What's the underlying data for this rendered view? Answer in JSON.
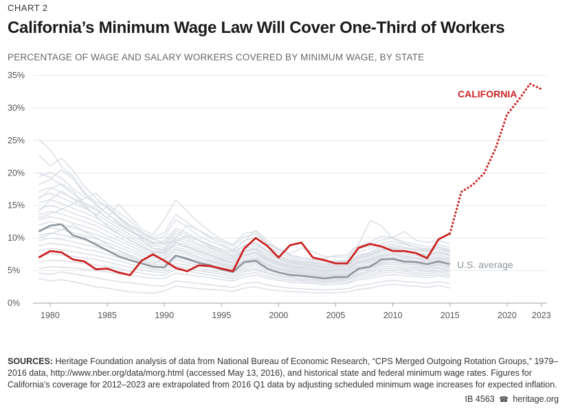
{
  "header": {
    "kicker": "CHART 2",
    "title": "California’s Minimum Wage Law Will Cover One-Third of Workers",
    "subtitle": "PERCENTAGE OF WAGE AND SALARY WORKERS COVERED BY MINIMUM WAGE, BY STATE"
  },
  "chart_data": {
    "type": "line",
    "xlabel": "",
    "ylabel": "",
    "xlim": [
      1978.5,
      2023.5
    ],
    "ylim": [
      0,
      35
    ],
    "x_ticks": [
      1980,
      1985,
      1990,
      1995,
      2000,
      2005,
      2010,
      2015,
      2020,
      2023
    ],
    "y_ticks": [
      0,
      5,
      10,
      15,
      20,
      25,
      30,
      35
    ],
    "y_tick_labels": [
      "0%",
      "5%",
      "10%",
      "15%",
      "20%",
      "25%",
      "30%",
      "35%"
    ],
    "grid": true,
    "colors": {
      "states": "#d8dde3",
      "us": "#8f979e",
      "california": "#cc2222"
    },
    "series": [
      {
        "name": "CALIFORNIA",
        "color": "#cc2222",
        "x": [
          1979,
          1980,
          1981,
          1982,
          1983,
          1984,
          1985,
          1986,
          1987,
          1988,
          1989,
          1990,
          1991,
          1992,
          1993,
          1994,
          1995,
          1996,
          1997,
          1998,
          1999,
          2000,
          2001,
          2002,
          2003,
          2004,
          2005,
          2006,
          2007,
          2008,
          2009,
          2010,
          2011,
          2012,
          2013,
          2014,
          2015
        ],
        "values": [
          7.0,
          8.0,
          7.8,
          6.7,
          6.4,
          5.2,
          5.3,
          4.7,
          4.3,
          6.5,
          7.5,
          6.5,
          5.4,
          4.9,
          5.8,
          5.7,
          5.3,
          4.9,
          8.4,
          10.0,
          8.8,
          7.0,
          8.9,
          9.3,
          7.0,
          6.6,
          6.1,
          6.1,
          8.5,
          9.1,
          8.7,
          8.0,
          8.0,
          7.7,
          6.9,
          9.8,
          10.7
        ]
      },
      {
        "name": "CALIFORNIA projection",
        "color": "#cc2222",
        "dotted": true,
        "x": [
          2015,
          2016,
          2017,
          2018,
          2019,
          2020,
          2021,
          2022,
          2023
        ],
        "values": [
          10.7,
          17.1,
          18.2,
          20.0,
          23.8,
          29.0,
          31.2,
          33.7,
          32.9
        ]
      },
      {
        "name": "U.S. average",
        "color": "#8f979e",
        "x": [
          1979,
          1980,
          1981,
          1982,
          1983,
          1984,
          1985,
          1986,
          1987,
          1988,
          1989,
          1990,
          1991,
          1992,
          1993,
          1994,
          1995,
          1996,
          1997,
          1998,
          1999,
          2000,
          2001,
          2002,
          2003,
          2004,
          2005,
          2006,
          2007,
          2008,
          2009,
          2010,
          2011,
          2012,
          2013,
          2014,
          2015
        ],
        "values": [
          11.0,
          11.9,
          12.1,
          10.4,
          9.9,
          9.0,
          8.1,
          7.2,
          6.6,
          6.1,
          5.6,
          5.5,
          7.3,
          6.8,
          6.2,
          5.8,
          5.2,
          4.8,
          6.3,
          6.5,
          5.3,
          4.7,
          4.3,
          4.2,
          4.0,
          3.8,
          4.0,
          4.0,
          5.3,
          5.6,
          6.7,
          6.8,
          6.4,
          6.3,
          6.0,
          6.4,
          6.0
        ]
      }
    ],
    "background_series_note": "state lines",
    "state_series": [
      [
        25.2,
        23.6,
        21.0,
        19.5,
        17.1,
        15.0,
        13.8,
        12.2,
        11.0,
        10.1,
        9.2,
        9.6,
        11.5,
        10.8,
        9.7,
        9.0,
        8.3,
        7.8,
        8.8,
        9.2,
        8.0,
        7.1,
        6.5,
        6.3,
        6.1,
        5.8,
        6.0,
        6.1,
        7.2,
        7.6,
        8.6,
        8.8,
        8.4,
        8.1,
        7.9,
        8.2,
        7.8
      ],
      [
        22.8,
        21.1,
        22.3,
        20.4,
        17.9,
        16.2,
        14.6,
        13.1,
        11.8,
        10.6,
        9.8,
        10.2,
        12.8,
        11.7,
        10.3,
        9.5,
        8.8,
        8.0,
        9.6,
        10.1,
        8.7,
        7.7,
        7.0,
        6.7,
        6.4,
        6.1,
        6.3,
        6.4,
        7.9,
        8.3,
        9.2,
        9.5,
        9.0,
        8.6,
        8.3,
        8.7,
        8.2
      ],
      [
        19.4,
        20.1,
        19.2,
        17.6,
        16.4,
        15.3,
        13.7,
        12.5,
        11.2,
        10.3,
        9.4,
        9.2,
        11.1,
        10.4,
        9.6,
        8.8,
        8.1,
        7.4,
        8.9,
        9.3,
        8.1,
        7.3,
        6.7,
        6.4,
        6.2,
        5.9,
        6.1,
        6.2,
        7.4,
        7.8,
        8.9,
        9.1,
        8.6,
        8.3,
        8.0,
        8.5,
        8.0
      ],
      [
        18.2,
        19.0,
        20.5,
        19.1,
        16.8,
        15.6,
        14.9,
        13.3,
        12.0,
        10.9,
        10.1,
        10.8,
        13.6,
        12.4,
        11.2,
        10.3,
        9.5,
        8.7,
        10.2,
        10.6,
        9.1,
        8.1,
        7.4,
        7.0,
        6.7,
        6.4,
        6.5,
        6.6,
        8.3,
        8.8,
        9.7,
        10.0,
        9.4,
        9.0,
        8.6,
        9.0,
        8.6
      ],
      [
        17.1,
        17.8,
        17.0,
        16.1,
        15.2,
        14.3,
        13.1,
        12.0,
        11.0,
        10.0,
        9.1,
        9.0,
        10.7,
        10.0,
        9.1,
        8.4,
        7.8,
        7.1,
        8.4,
        8.9,
        7.8,
        7.0,
        6.4,
        6.1,
        5.9,
        5.6,
        5.8,
        5.9,
        7.0,
        7.4,
        8.3,
        8.6,
        8.1,
        7.8,
        7.5,
        7.9,
        7.5
      ],
      [
        16.3,
        16.9,
        16.2,
        15.4,
        14.6,
        13.7,
        12.6,
        11.6,
        10.5,
        9.6,
        8.8,
        8.6,
        10.2,
        9.6,
        8.8,
        8.1,
        7.5,
        6.8,
        8.1,
        8.5,
        7.4,
        6.7,
        6.1,
        5.9,
        5.7,
        5.4,
        5.6,
        5.7,
        6.8,
        7.2,
        8.0,
        8.3,
        7.9,
        7.6,
        7.3,
        7.7,
        7.3
      ],
      [
        15.4,
        15.9,
        15.3,
        14.6,
        13.9,
        13.1,
        12.1,
        11.1,
        10.1,
        9.2,
        8.4,
        8.3,
        9.8,
        9.2,
        8.4,
        7.8,
        7.2,
        6.6,
        7.8,
        8.2,
        7.1,
        6.4,
        5.9,
        5.7,
        5.5,
        5.2,
        5.4,
        5.5,
        6.5,
        6.9,
        7.7,
        8.0,
        7.6,
        7.3,
        7.0,
        7.4,
        7.0
      ],
      [
        14.5,
        15.0,
        14.5,
        13.8,
        13.2,
        12.5,
        11.6,
        10.6,
        9.7,
        8.8,
        8.0,
        7.9,
        9.4,
        8.8,
        8.1,
        7.5,
        6.9,
        6.3,
        7.5,
        7.9,
        6.9,
        6.2,
        5.7,
        5.5,
        5.3,
        5.0,
        5.2,
        5.3,
        6.3,
        6.7,
        7.4,
        7.7,
        7.3,
        7.0,
        6.8,
        7.1,
        6.8
      ],
      [
        13.6,
        14.1,
        13.7,
        13.1,
        12.5,
        11.9,
        11.0,
        10.1,
        9.2,
        8.4,
        7.7,
        7.6,
        9.0,
        8.5,
        7.8,
        7.2,
        6.6,
        6.1,
        7.2,
        7.6,
        6.6,
        6.0,
        5.5,
        5.3,
        5.1,
        4.8,
        5.0,
        5.1,
        6.1,
        6.4,
        7.1,
        7.4,
        7.0,
        6.8,
        6.5,
        6.8,
        6.5
      ],
      [
        12.8,
        13.3,
        12.9,
        12.3,
        11.8,
        11.2,
        10.4,
        9.6,
        8.8,
        8.0,
        7.3,
        7.3,
        8.6,
        8.1,
        7.5,
        6.9,
        6.4,
        5.8,
        6.9,
        7.3,
        6.4,
        5.8,
        5.3,
        5.1,
        4.9,
        4.7,
        4.8,
        4.9,
        5.8,
        6.2,
        6.9,
        7.1,
        6.8,
        6.5,
        6.3,
        6.6,
        6.3
      ],
      [
        12.0,
        12.5,
        12.1,
        11.6,
        11.1,
        10.6,
        9.9,
        9.1,
        8.3,
        7.6,
        7.0,
        6.9,
        8.2,
        7.7,
        7.1,
        6.6,
        6.1,
        5.6,
        6.6,
        7.0,
        6.1,
        5.5,
        5.1,
        4.9,
        4.7,
        4.5,
        4.6,
        4.7,
        5.6,
        5.9,
        6.6,
        6.9,
        6.5,
        6.3,
        6.0,
        6.3,
        6.0
      ],
      [
        11.2,
        11.6,
        11.3,
        10.8,
        10.4,
        9.9,
        9.3,
        8.6,
        7.9,
        7.2,
        6.6,
        6.6,
        7.8,
        7.4,
        6.8,
        6.3,
        5.8,
        5.3,
        6.3,
        6.7,
        5.8,
        5.3,
        4.9,
        4.7,
        4.5,
        4.3,
        4.4,
        4.5,
        5.3,
        5.7,
        6.3,
        6.6,
        6.2,
        6.0,
        5.8,
        6.1,
        5.8
      ],
      [
        10.4,
        10.8,
        10.5,
        10.1,
        9.7,
        9.3,
        8.7,
        8.1,
        7.4,
        6.8,
        6.3,
        6.2,
        7.4,
        7.0,
        6.5,
        6.0,
        5.5,
        5.1,
        6.0,
        6.4,
        5.6,
        5.1,
        4.7,
        4.5,
        4.3,
        4.1,
        4.2,
        4.3,
        5.1,
        5.4,
        6.0,
        6.3,
        6.0,
        5.8,
        5.5,
        5.8,
        5.5
      ],
      [
        9.6,
        10.0,
        9.8,
        9.4,
        9.0,
        8.6,
        8.1,
        7.6,
        7.0,
        6.4,
        5.9,
        5.9,
        7.0,
        6.6,
        6.1,
        5.7,
        5.2,
        4.8,
        5.7,
        6.1,
        5.3,
        4.8,
        4.5,
        4.3,
        4.1,
        3.9,
        4.0,
        4.1,
        4.9,
        5.2,
        5.8,
        6.0,
        5.7,
        5.5,
        5.3,
        5.5,
        5.3
      ],
      [
        8.8,
        9.2,
        9.0,
        8.7,
        8.3,
        8.0,
        7.5,
        7.0,
        6.5,
        6.0,
        5.5,
        5.5,
        6.6,
        6.2,
        5.8,
        5.4,
        5.0,
        4.6,
        5.4,
        5.8,
        5.0,
        4.6,
        4.3,
        4.1,
        3.9,
        3.7,
        3.8,
        3.9,
        4.6,
        4.9,
        5.5,
        5.7,
        5.4,
        5.3,
        5.0,
        5.3,
        5.0
      ],
      [
        8.0,
        8.4,
        8.2,
        7.9,
        7.6,
        7.3,
        6.9,
        6.5,
        6.0,
        5.6,
        5.2,
        5.1,
        6.1,
        5.8,
        5.4,
        5.0,
        4.7,
        4.3,
        5.1,
        5.4,
        4.7,
        4.3,
        4.0,
        3.8,
        3.7,
        3.5,
        3.6,
        3.7,
        4.4,
        4.7,
        5.2,
        5.4,
        5.2,
        5.0,
        4.8,
        5.0,
        4.8
      ],
      [
        7.2,
        7.6,
        7.4,
        7.2,
        6.9,
        6.7,
        6.3,
        5.9,
        5.5,
        5.1,
        4.8,
        4.7,
        5.7,
        5.4,
        5.0,
        4.7,
        4.4,
        4.0,
        4.8,
        5.1,
        4.5,
        4.1,
        3.8,
        3.6,
        3.5,
        3.3,
        3.4,
        3.5,
        4.2,
        4.4,
        4.9,
        5.1,
        4.9,
        4.7,
        4.5,
        4.8,
        4.5
      ],
      [
        6.3,
        6.6,
        6.5,
        6.3,
        6.1,
        5.9,
        5.6,
        5.3,
        4.9,
        4.6,
        4.3,
        4.3,
        5.2,
        4.9,
        4.6,
        4.3,
        4.0,
        3.7,
        4.4,
        4.7,
        4.1,
        3.8,
        3.5,
        3.4,
        3.2,
        3.1,
        3.2,
        3.2,
        3.9,
        4.1,
        4.6,
        4.8,
        4.6,
        4.4,
        4.2,
        4.5,
        4.2
      ],
      [
        5.3,
        5.6,
        5.5,
        5.4,
        5.2,
        5.0,
        4.8,
        4.5,
        4.3,
        4.0,
        3.8,
        3.8,
        4.6,
        4.4,
        4.1,
        3.9,
        3.6,
        3.4,
        4.0,
        4.3,
        3.8,
        3.5,
        3.2,
        3.1,
        3.0,
        2.8,
        2.9,
        3.0,
        3.6,
        3.8,
        4.2,
        4.4,
        4.2,
        4.1,
        3.9,
        4.2,
        3.9
      ],
      [
        3.8,
        3.4,
        3.6,
        3.3,
        2.9,
        2.5,
        2.3,
        2.0,
        1.7,
        1.6,
        1.5,
        1.9,
        2.6,
        2.4,
        2.2,
        2.1,
        2.0,
        1.8,
        2.3,
        2.5,
        2.1,
        1.9,
        1.8,
        1.7,
        1.6,
        1.6,
        1.6,
        1.7,
        2.1,
        2.3,
        2.7,
        2.9,
        2.7,
        2.6,
        2.4,
        2.7,
        2.3
      ],
      [
        4.6,
        4.4,
        4.8,
        4.5,
        4.2,
        3.9,
        3.6,
        3.3,
        3.1,
        2.9,
        2.7,
        2.6,
        3.4,
        3.2,
        3.0,
        2.8,
        2.6,
        2.4,
        3.0,
        3.2,
        2.8,
        2.5,
        2.3,
        2.2,
        2.1,
        2.0,
        2.1,
        2.2,
        2.7,
        2.9,
        3.3,
        3.5,
        3.3,
        3.2,
        3.0,
        3.3,
        3.0
      ],
      [
        14.0,
        15.9,
        17.2,
        16.0,
        14.8,
        13.5,
        14.9,
        13.0,
        11.5,
        9.8,
        8.4,
        8.1,
        10.0,
        12.0,
        11.2,
        10.0,
        9.1,
        8.2,
        9.5,
        11.2,
        9.6,
        8.2,
        7.3,
        7.0,
        6.6,
        6.9,
        7.3,
        7.4,
        9.0,
        12.7,
        11.9,
        9.9,
        9.2,
        8.6,
        8.1,
        8.5,
        7.9
      ],
      [
        16.0,
        17.5,
        18.4,
        17.2,
        15.4,
        14.6,
        13.0,
        15.2,
        13.3,
        11.4,
        10.5,
        12.9,
        15.9,
        14.1,
        12.4,
        11.0,
        9.8,
        9.0,
        10.7,
        11.0,
        9.2,
        8.4,
        7.6,
        8.5,
        7.9,
        7.2,
        7.1,
        7.0,
        8.8,
        9.3,
        10.3,
        10.1,
        11.0,
        9.7,
        9.3,
        9.6,
        9.1
      ],
      [
        13.1,
        13.7,
        14.4,
        15.3,
        16.1,
        16.9,
        15.2,
        13.9,
        12.6,
        11.0,
        9.9,
        9.2,
        9.5,
        10.3,
        9.6,
        8.6,
        7.8,
        7.2,
        8.0,
        8.3,
        7.5,
        6.8,
        6.2,
        6.0,
        5.8,
        5.5,
        5.7,
        5.8,
        6.9,
        7.3,
        8.1,
        8.4,
        8.0,
        7.7,
        7.4,
        7.8,
        7.4
      ],
      [
        10.0,
        10.6,
        11.3,
        12.0,
        11.0,
        10.1,
        9.0,
        8.0,
        7.2,
        6.5,
        6.0,
        6.8,
        8.3,
        7.8,
        7.1,
        6.5,
        6.0,
        5.4,
        6.5,
        6.8,
        5.9,
        5.3,
        4.8,
        4.6,
        4.4,
        4.2,
        4.3,
        4.4,
        5.2,
        5.5,
        6.1,
        6.3,
        6.0,
        5.8,
        5.6,
        5.9,
        5.6
      ],
      [
        20.0,
        19.3,
        18.1,
        16.8,
        15.1,
        13.4,
        11.8,
        10.7,
        9.6,
        8.7,
        7.9,
        7.7,
        9.3,
        8.7,
        8.0,
        7.4,
        6.8,
        6.2,
        7.3,
        7.7,
        6.7,
        6.1,
        5.6,
        5.4,
        5.2,
        4.9,
        5.1,
        5.2,
        6.2,
        6.6,
        7.3,
        7.6,
        7.2,
        6.9,
        6.7,
        7.0,
        6.7
      ]
    ]
  },
  "labels": {
    "california": "CALIFORNIA",
    "us_average": "U.S. average"
  },
  "sources": {
    "lead": "SOURCES:",
    "text": "Heritage Foundation analysis of data from National Bureau of Economic Research, “CPS Merged Outgoing Rotation Groups,” 1979–2016 data, http://www.nber.org/data/morg.html (accessed May 13, 2016), and historical state and federal minimum wage rates. Figures for California’s coverage for 2012–2023 are extrapolated from 2016 Q1 data by adjusting scheduled minimum wage increases for expected inflation."
  },
  "footer": {
    "id": "IB 4563",
    "site": "heritage.org"
  }
}
